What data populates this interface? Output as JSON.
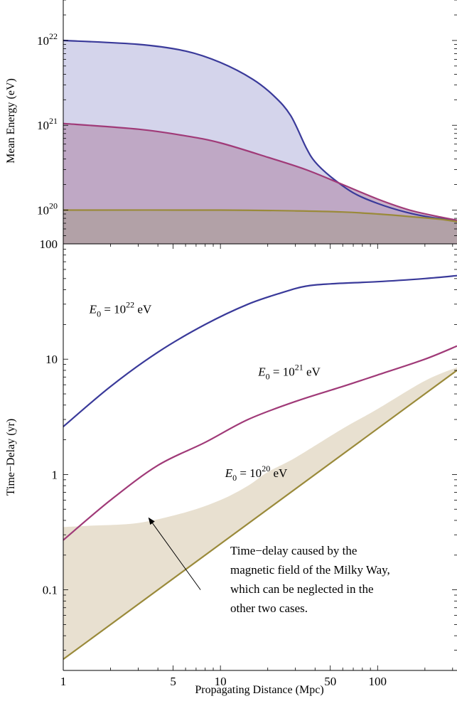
{
  "chart_data": [
    {
      "type": "area",
      "ylabel": "Mean Energy (eV)",
      "xlabel": "",
      "xscale": "log",
      "yscale": "log",
      "xlim": [
        1,
        320
      ],
      "ylim": [
        4e+19,
        3e+22
      ],
      "yticks": [
        {
          "base": "10",
          "exp": "22",
          "value": 1e+22
        },
        {
          "base": "10",
          "exp": "21",
          "value": 1e+21
        },
        {
          "base": "10",
          "exp": "20",
          "value": 1e+20
        }
      ],
      "series": [
        {
          "color": "#3a3a9a",
          "fill": "#c6c6e4",
          "points": [
            [
              1,
              1e+22
            ],
            [
              3,
              9e+21
            ],
            [
              6,
              7.5e+21
            ],
            [
              10,
              5.5e+21
            ],
            [
              16,
              3.5e+21
            ],
            [
              22,
              2.2e+21
            ],
            [
              28,
              1.3e+21
            ],
            [
              35,
              5.5e+20
            ],
            [
              40,
              3.7e+20
            ],
            [
              50,
              2.5e+20
            ],
            [
              70,
              1.6e+20
            ],
            [
              100,
              1.2e+20
            ],
            [
              150,
              9.5e+19
            ],
            [
              220,
              8.2e+19
            ],
            [
              320,
              7.6e+19
            ]
          ]
        },
        {
          "color": "#a03a78",
          "fill": "#b89ab8",
          "points": [
            [
              1,
              1.05e+21
            ],
            [
              3,
              9e+20
            ],
            [
              6,
              7.5e+20
            ],
            [
              10,
              6.2e+20
            ],
            [
              20,
              4.2e+20
            ],
            [
              35,
              3e+20
            ],
            [
              60,
              2e+20
            ],
            [
              100,
              1.35e+20
            ],
            [
              160,
              1e+20
            ],
            [
              250,
              8.3e+19
            ],
            [
              320,
              7.6e+19
            ]
          ]
        },
        {
          "color": "#9a8a3a",
          "fill": "#ae9f9c",
          "points": [
            [
              1,
              1e+20
            ],
            [
              10,
              1e+20
            ],
            [
              30,
              9.8e+19
            ],
            [
              60,
              9.5e+19
            ],
            [
              100,
              9e+19
            ],
            [
              160,
              8.4e+19
            ],
            [
              250,
              7.8e+19
            ],
            [
              320,
              7.3e+19
            ]
          ]
        }
      ]
    },
    {
      "type": "line",
      "xlabel": "Propagating Distance (Mpc)",
      "ylabel": "Time−Delay (yr)",
      "xscale": "log",
      "yscale": "log",
      "xlim": [
        1,
        320
      ],
      "ylim": [
        0.02,
        100
      ],
      "xticks": [
        {
          "label": "1",
          "value": 1
        },
        {
          "label": "5",
          "value": 5
        },
        {
          "label": "10",
          "value": 10
        },
        {
          "label": "50",
          "value": 50
        },
        {
          "label": "100",
          "value": 100
        }
      ],
      "yticks": [
        {
          "label": "100",
          "value": 100
        },
        {
          "label": "10",
          "value": 10
        },
        {
          "label": "1",
          "value": 1
        },
        {
          "label": "0.1",
          "value": 0.1
        }
      ],
      "series": [
        {
          "label": {
            "sym": "E",
            "sub": "0",
            "mid": " = 10",
            "exp": "22",
            "unit": " eV"
          },
          "color": "#3a3a9a",
          "points": [
            [
              1,
              2.6
            ],
            [
              2,
              5.8
            ],
            [
              4,
              11.5
            ],
            [
              8,
              20
            ],
            [
              15,
              30
            ],
            [
              25,
              38
            ],
            [
              35,
              43
            ],
            [
              50,
              45
            ],
            [
              100,
              47
            ],
            [
              200,
              50
            ],
            [
              320,
              53
            ]
          ]
        },
        {
          "label": {
            "sym": "E",
            "sub": "0",
            "mid": " = 10",
            "exp": "21",
            "unit": " eV"
          },
          "color": "#a03a78",
          "points": [
            [
              1,
              0.27
            ],
            [
              2,
              0.6
            ],
            [
              4,
              1.2
            ],
            [
              8,
              1.9
            ],
            [
              15,
              3.0
            ],
            [
              30,
              4.3
            ],
            [
              60,
              5.8
            ],
            [
              100,
              7.3
            ],
            [
              200,
              10
            ],
            [
              320,
              13
            ]
          ]
        },
        {
          "label": {
            "sym": "E",
            "sub": "0",
            "mid": " = 10",
            "exp": "20",
            "unit": " eV"
          },
          "color": "#9a8a3a",
          "points": [
            [
              1,
              0.025
            ],
            [
              320,
              8.0
            ]
          ]
        }
      ],
      "band": {
        "color": "#e8e0d0",
        "upper": [
          [
            1,
            0.35
          ],
          [
            1.5,
            0.36
          ],
          [
            3,
            0.38
          ],
          [
            6,
            0.47
          ],
          [
            10,
            0.6
          ],
          [
            15,
            0.8
          ],
          [
            20,
            1.05
          ],
          [
            30,
            1.4
          ],
          [
            60,
            2.5
          ],
          [
            100,
            3.7
          ],
          [
            200,
            6.5
          ],
          [
            320,
            8.5
          ]
        ],
        "lower": [
          [
            1,
            0.025
          ],
          [
            320,
            8.0
          ]
        ]
      },
      "annotation": {
        "lines": [
          "Time−delay caused by the",
          "magnetic field of the Milky Way,",
          "which can be neglected in the",
          "other two cases."
        ],
        "arrow_from": [
          10,
          0.1
        ],
        "arrow_to": [
          3.5,
          0.42
        ]
      }
    }
  ]
}
